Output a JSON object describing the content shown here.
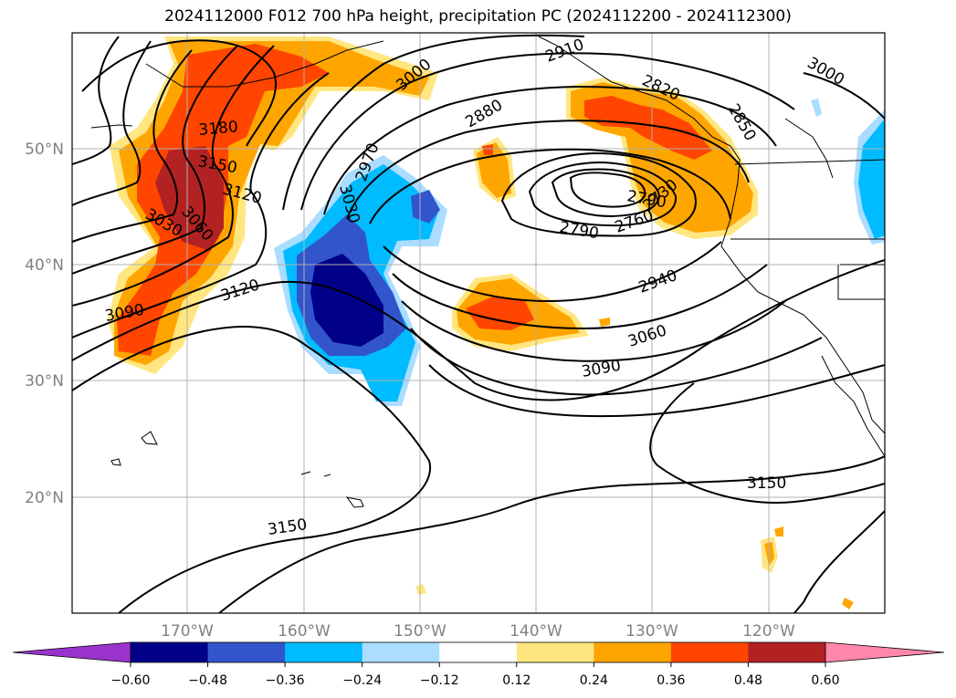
{
  "title": "2024112000 F012 700 hPa height, precipitation PC (2024112200 - 2024112300)",
  "lat_labels": [
    "50°N",
    "40°N",
    "30°N",
    "20°N"
  ],
  "lon_labels": [
    "170°W",
    "160°W",
    "150°W",
    "140°W",
    "130°W",
    "120°W"
  ],
  "colorbar": {
    "ticks": [
      "−0.60",
      "−0.48",
      "−0.36",
      "−0.24",
      "−0.12",
      "0.12",
      "0.24",
      "0.36",
      "0.48",
      "0.60"
    ],
    "colors": [
      "#9933cc",
      "#000088",
      "#3355cc",
      "#00bbff",
      "#aaddff",
      "#ffffff",
      "#ffe680",
      "#ffa500",
      "#ff4500",
      "#b22222",
      "#ff88aa"
    ]
  },
  "contour_labels": [
    "3180",
    "3150",
    "3120",
    "3060",
    "3030",
    "3120",
    "3090",
    "3000",
    "2910",
    "2880",
    "2970",
    "3030",
    "2820",
    "2850",
    "3000",
    "2790",
    "2760",
    "2790",
    "2730",
    "2940",
    "3060",
    "3090",
    "3150",
    "3150"
  ]
}
